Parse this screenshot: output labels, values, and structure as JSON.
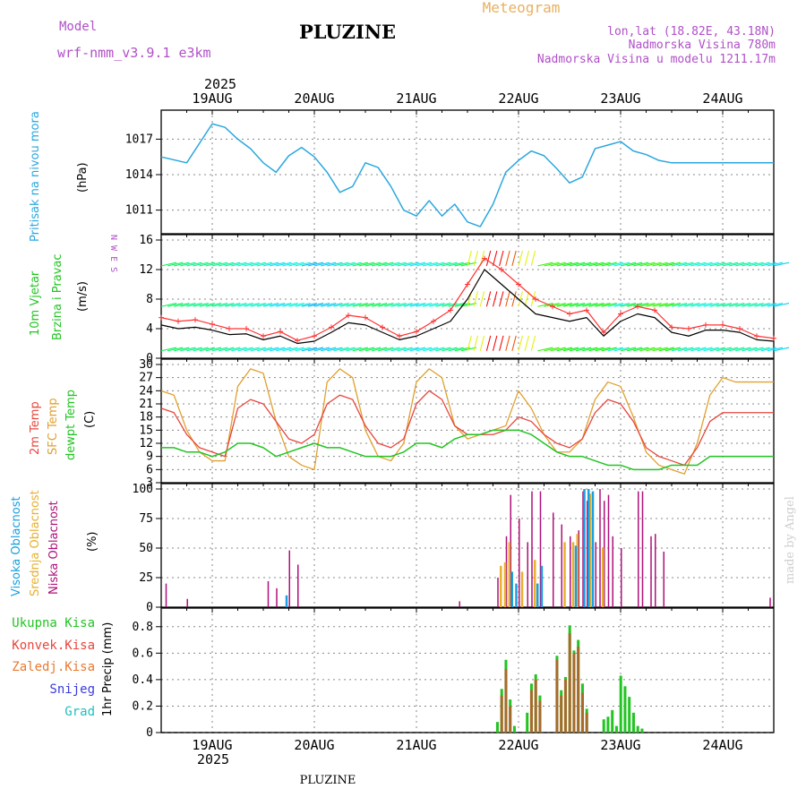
{
  "header": {
    "model_label": "Model",
    "model_name": "wrf-nmm_v3.9.1  e3km",
    "station": "PLUZINE",
    "product": "Meteogram",
    "lonlat": "lon,lat (18.82E, 43.18N)",
    "altitude": "Nadmorska Visina 780m",
    "model_altitude": "Nadmorska Visina u modelu 1211.17m",
    "year_top": "2025",
    "year_bottom": "2025",
    "footer": "PLUZINE",
    "credit": "made by Angel"
  },
  "colors": {
    "pressure": "#2aa7df",
    "wind_speed": "#000000",
    "gust": "#ff3333",
    "t2m": "#e8453c",
    "sfc": "#e0a030",
    "dewpt": "#22c422",
    "high_cloud": "#1aa0e0",
    "mid_cloud": "#e8b030",
    "low_cloud": "#b0107a",
    "total_precip": "#22c422",
    "conv_precip": "#e8453c",
    "freezing": "#e87a30",
    "snow": "#3a3ae0",
    "grad": "#20c0c0",
    "title_purple": "#b050c8",
    "title_orange": "#e8b060"
  },
  "chart_data": [
    {
      "type": "line",
      "name": "pressure",
      "title": "Pritisak na nivou mora",
      "ylabel": "(hPa)",
      "x_ticks": [
        "19AUG",
        "20AUG",
        "21AUG",
        "22AUG",
        "23AUG",
        "24AUG"
      ],
      "ylim": [
        1009,
        1019
      ],
      "y_ticks": [
        1011,
        1014,
        1017
      ],
      "x": [
        0,
        6,
        12,
        15,
        18,
        21,
        24,
        27,
        30,
        33,
        36,
        39,
        42,
        45,
        48,
        51,
        54,
        57,
        60,
        63,
        66,
        69,
        72,
        75,
        78,
        81,
        84,
        87,
        90,
        93,
        96,
        99,
        102,
        105,
        108,
        111,
        114,
        117,
        120,
        123,
        126,
        129,
        132,
        135,
        138,
        141,
        144
      ],
      "values": [
        1015.5,
        1015.0,
        1018.3,
        1018.0,
        1017.0,
        1016.2,
        1015.0,
        1014.2,
        1015.6,
        1016.3,
        1015.5,
        1014.2,
        1012.5,
        1013.0,
        1015.0,
        1014.6,
        1013.0,
        1011.0,
        1010.5,
        1011.8,
        1010.5,
        1011.5,
        1010.0,
        1009.6,
        1011.5,
        1014.2,
        1015.2,
        1016.0,
        1015.6,
        1014.5,
        1013.3,
        1013.8,
        1016.2,
        1016.5,
        1016.8,
        1016.0,
        1015.7,
        1015.2,
        1015.0,
        1015.0,
        1015.0,
        1015.0,
        1015.0,
        1015.0,
        1015.0,
        1015.0,
        1015.0
      ]
    },
    {
      "type": "line",
      "name": "wind",
      "title_line1": "10m Vjetar",
      "title_line2": "Brzina i Pravac",
      "ylabel": "(m/s)",
      "compass": "N W E S",
      "ylim": [
        0,
        16
      ],
      "y_ticks": [
        0,
        4,
        8,
        12,
        16
      ],
      "barb_rows": [
        1,
        7,
        12.5
      ],
      "x": [
        0,
        4,
        8,
        12,
        16,
        20,
        24,
        28,
        32,
        36,
        40,
        44,
        48,
        52,
        56,
        60,
        64,
        68,
        72,
        76,
        80,
        84,
        88,
        92,
        96,
        100,
        104,
        108,
        112,
        116,
        120,
        124,
        128,
        132,
        136,
        140,
        144
      ],
      "speed": [
        4.5,
        4.0,
        4.2,
        3.8,
        3.2,
        3.3,
        2.5,
        3.0,
        2.0,
        2.3,
        3.5,
        4.8,
        4.5,
        3.5,
        2.5,
        3.0,
        4.0,
        5.0,
        8.0,
        12.0,
        10.0,
        8.0,
        6.0,
        5.5,
        5.0,
        5.5,
        3.0,
        5.0,
        6.0,
        5.5,
        3.5,
        3.0,
        3.8,
        3.8,
        3.5,
        2.5,
        2.3
      ],
      "gust": [
        5.5,
        5.0,
        5.2,
        4.6,
        4.0,
        4.0,
        3.0,
        3.6,
        2.4,
        3.0,
        4.2,
        5.8,
        5.5,
        4.2,
        3.0,
        3.6,
        5.0,
        6.5,
        10.0,
        13.5,
        12.0,
        10.0,
        8.0,
        7.0,
        6.0,
        6.5,
        3.5,
        6.0,
        7.0,
        6.5,
        4.2,
        4.0,
        4.5,
        4.5,
        4.0,
        3.0,
        2.7
      ]
    },
    {
      "type": "line",
      "name": "temperature",
      "title_line1": "2m Temp",
      "title_line2": "SFC Temp",
      "title_line3": "dewpt Temp",
      "ylabel": "(C)",
      "ylim": [
        3,
        30
      ],
      "y_ticks": [
        3,
        6,
        9,
        12,
        15,
        18,
        21,
        24,
        27,
        30
      ],
      "x": [
        0,
        3,
        6,
        9,
        12,
        15,
        18,
        21,
        24,
        27,
        30,
        33,
        36,
        39,
        42,
        45,
        48,
        51,
        54,
        57,
        60,
        63,
        66,
        69,
        72,
        75,
        78,
        81,
        84,
        87,
        90,
        93,
        96,
        99,
        102,
        105,
        108,
        111,
        114,
        117,
        120,
        123,
        126,
        129,
        132,
        135,
        138,
        141,
        144
      ],
      "t2m": [
        20,
        19,
        14,
        11,
        10,
        9,
        20,
        22,
        21,
        17,
        13,
        12,
        14,
        21,
        23,
        22,
        16,
        12,
        11,
        13,
        21,
        24,
        22,
        16,
        14,
        14,
        14,
        15,
        18,
        17,
        14,
        12,
        11,
        13,
        19,
        22,
        21,
        17,
        11,
        9,
        8,
        7,
        11,
        17,
        19,
        19,
        19,
        19,
        19
      ],
      "sfc": [
        24,
        23,
        15,
        10,
        8,
        8,
        25,
        29,
        28,
        17,
        9,
        7,
        6,
        26,
        29,
        27,
        15,
        9,
        8,
        12,
        26,
        29,
        27,
        16,
        13,
        14,
        15,
        16,
        24,
        20,
        14,
        10,
        10,
        13,
        22,
        26,
        25,
        18,
        10,
        7,
        6,
        5,
        12,
        23,
        27,
        26,
        26,
        26,
        26
      ],
      "dewpt": [
        11,
        11,
        10,
        10,
        9,
        10,
        12,
        12,
        11,
        9,
        10,
        11,
        12,
        11,
        11,
        10,
        9,
        9,
        9,
        10,
        12,
        12,
        11,
        13,
        14,
        14,
        15,
        15,
        15,
        14,
        12,
        10,
        9,
        9,
        8,
        7,
        7,
        6,
        6,
        6,
        7,
        7,
        7,
        9,
        9,
        9,
        9,
        9,
        9
      ]
    },
    {
      "type": "bar",
      "name": "clouds",
      "title_line1": "Visoka Oblacnost",
      "title_line2": "Srednja Oblacnost",
      "title_line3": "Niska Oblacnost",
      "ylabel": "(%)",
      "ylim": [
        0,
        100
      ],
      "y_ticks": [
        0,
        25,
        50,
        75,
        100
      ],
      "low": [
        [
          1,
          20
        ],
        [
          6,
          7
        ],
        [
          25,
          22
        ],
        [
          27,
          16
        ],
        [
          30,
          48
        ],
        [
          32,
          36
        ],
        [
          70,
          5
        ],
        [
          79,
          25
        ],
        [
          81,
          60
        ],
        [
          82,
          95
        ],
        [
          84,
          75
        ],
        [
          86,
          55
        ],
        [
          87,
          98
        ],
        [
          89,
          98
        ],
        [
          92,
          80
        ],
        [
          94,
          70
        ],
        [
          96,
          60
        ],
        [
          98,
          65
        ],
        [
          99,
          98
        ],
        [
          100,
          90
        ],
        [
          102,
          55
        ],
        [
          103,
          100
        ],
        [
          104,
          90
        ],
        [
          105,
          95
        ],
        [
          106,
          60
        ],
        [
          108,
          50
        ],
        [
          112,
          98
        ],
        [
          113,
          98
        ],
        [
          115,
          60
        ],
        [
          116,
          62
        ],
        [
          118,
          47
        ],
        [
          143,
          8
        ]
      ],
      "mid": [
        [
          80,
          35
        ],
        [
          81,
          38
        ],
        [
          82,
          55
        ],
        [
          85,
          30
        ],
        [
          88,
          40
        ],
        [
          95,
          55
        ],
        [
          97,
          55
        ],
        [
          98,
          62
        ],
        [
          101,
          96
        ],
        [
          104,
          50
        ]
      ],
      "high": [
        [
          29,
          10
        ],
        [
          82,
          30
        ],
        [
          83,
          20
        ],
        [
          88,
          20
        ],
        [
          89,
          35
        ],
        [
          97,
          52
        ],
        [
          99,
          100
        ],
        [
          100,
          100
        ],
        [
          101,
          98
        ]
      ]
    },
    {
      "type": "bar",
      "name": "precip",
      "ylabel": "1hr Precip (mm)",
      "legend": [
        "Ukupna Kisa",
        "Konvek.Kisa",
        "Zaledj.Kisa",
        "Snijeg",
        "Grad"
      ],
      "ylim": [
        0,
        0.9
      ],
      "y_ticks": [
        0,
        0.2,
        0.4,
        0.6,
        0.8
      ],
      "total": [
        [
          79,
          0.08
        ],
        [
          80,
          0.33
        ],
        [
          81,
          0.55
        ],
        [
          82,
          0.25
        ],
        [
          83,
          0.05
        ],
        [
          86,
          0.15
        ],
        [
          87,
          0.37
        ],
        [
          88,
          0.44
        ],
        [
          89,
          0.28
        ],
        [
          93,
          0.58
        ],
        [
          94,
          0.32
        ],
        [
          95,
          0.42
        ],
        [
          96,
          0.81
        ],
        [
          97,
          0.62
        ],
        [
          98,
          0.7
        ],
        [
          99,
          0.37
        ],
        [
          100,
          0.18
        ],
        [
          104,
          0.1
        ],
        [
          105,
          0.12
        ],
        [
          106,
          0.17
        ],
        [
          107,
          0.05
        ],
        [
          108,
          0.43
        ],
        [
          109,
          0.35
        ],
        [
          110,
          0.27
        ],
        [
          111,
          0.15
        ],
        [
          112,
          0.05
        ],
        [
          113,
          0.03
        ]
      ],
      "conv": [
        [
          80,
          0.28
        ],
        [
          81,
          0.48
        ],
        [
          82,
          0.2
        ],
        [
          87,
          0.32
        ],
        [
          88,
          0.4
        ],
        [
          89,
          0.24
        ],
        [
          93,
          0.55
        ],
        [
          94,
          0.28
        ],
        [
          95,
          0.4
        ],
        [
          96,
          0.75
        ],
        [
          97,
          0.6
        ],
        [
          98,
          0.65
        ],
        [
          99,
          0.3
        ],
        [
          100,
          0.15
        ]
      ]
    }
  ]
}
